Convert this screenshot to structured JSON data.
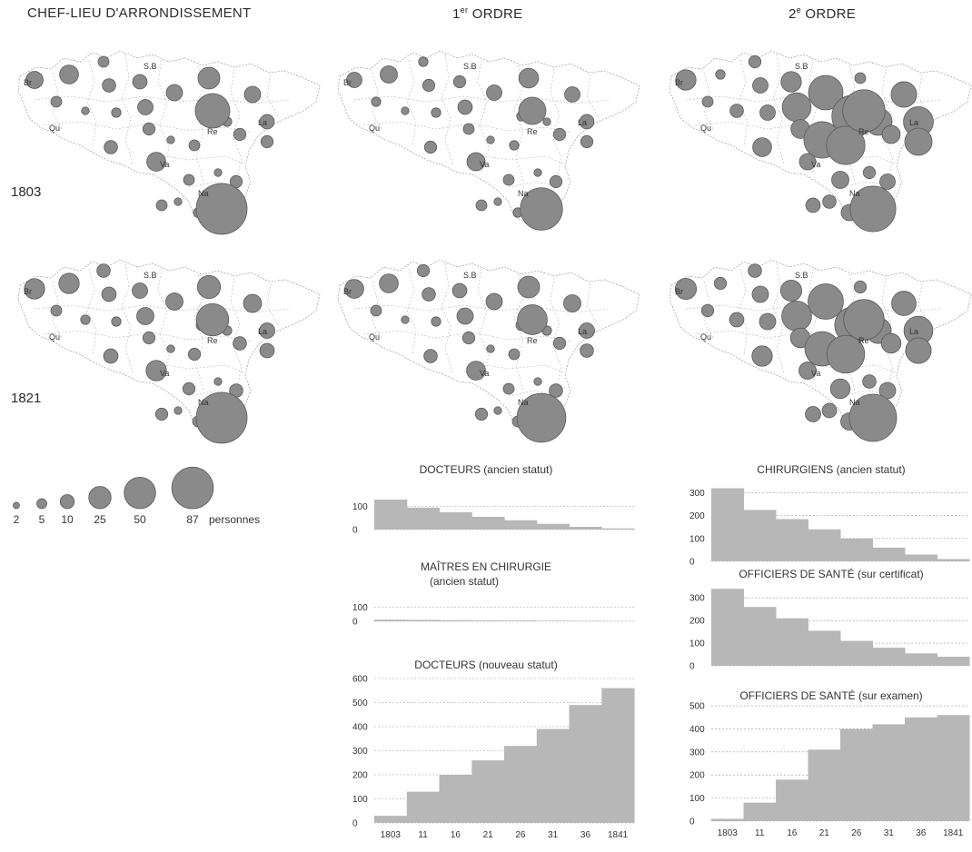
{
  "columns": [
    "CHEF-LIEU D'ARRONDISSEMENT",
    "1",
    "2"
  ],
  "column_ordre": {
    "first": {
      "num": "1",
      "sup": "er",
      "word": " ORDRE"
    },
    "second": {
      "num": "2",
      "sup": "e",
      "word": " ORDRE"
    }
  },
  "rows": [
    "1803",
    "1821"
  ],
  "city_labels": [
    "Br",
    "Qu",
    "S.B",
    "Re",
    "La",
    "Va",
    "Na"
  ],
  "maps": [
    {
      "year": "1803",
      "column": "CHEF-LIEU D'ARRONDISSEMENT",
      "sizes": [
        10,
        12,
        4,
        6,
        7,
        8,
        16,
        4,
        2,
        3,
        5,
        9,
        3,
        2,
        4,
        3,
        5,
        7,
        9,
        5,
        40,
        6,
        12,
        4,
        2,
        2,
        3,
        5,
        4,
        87
      ]
    },
    {
      "year": "1803",
      "column": "1er ORDRE",
      "sizes": [
        8,
        10,
        3,
        5,
        5,
        7,
        13,
        3,
        2,
        3,
        4,
        8,
        3,
        2,
        3,
        2,
        5,
        7,
        8,
        5,
        25,
        5,
        11,
        4,
        2,
        2,
        3,
        5,
        4,
        60
      ]
    },
    {
      "year": "1803",
      "column": "2e ORDRE",
      "sizes": [
        14,
        3,
        5,
        8,
        14,
        28,
        4,
        4,
        6,
        8,
        12,
        40,
        60,
        45,
        50,
        25,
        11,
        30,
        22,
        25,
        60,
        12,
        9,
        10,
        5,
        6,
        9,
        8,
        7,
        70
      ]
    },
    {
      "year": "1821",
      "column": "CHEF-LIEU D'ARRONDISSEMENT",
      "sizes": [
        14,
        14,
        6,
        7,
        8,
        10,
        18,
        4,
        3,
        3,
        5,
        10,
        4,
        2,
        5,
        3,
        6,
        8,
        11,
        7,
        35,
        7,
        14,
        5,
        2,
        2,
        4,
        6,
        5,
        87
      ]
    },
    {
      "year": "1821",
      "column": "1er ORDRE",
      "sizes": [
        12,
        12,
        5,
        6,
        7,
        9,
        16,
        4,
        2,
        3,
        5,
        9,
        4,
        2,
        4,
        3,
        5,
        8,
        10,
        6,
        30,
        6,
        12,
        4,
        2,
        2,
        4,
        6,
        5,
        80
      ]
    },
    {
      "year": "1821",
      "column": "2e ORDRE",
      "sizes": [
        15,
        5,
        6,
        9,
        15,
        30,
        5,
        5,
        7,
        9,
        13,
        42,
        45,
        40,
        48,
        22,
        13,
        28,
        20,
        22,
        55,
        14,
        10,
        13,
        6,
        7,
        10,
        9,
        8,
        75
      ]
    }
  ],
  "legend": {
    "sizes": [
      2,
      5,
      10,
      25,
      50,
      87
    ],
    "labels": [
      "2",
      "5",
      "10",
      "25",
      "50",
      "87"
    ],
    "unit": "personnes"
  },
  "chart_data": [
    {
      "type": "bar",
      "title": "DOCTEURS (ancien statut)",
      "x": [
        "1803",
        "11",
        "16",
        "21",
        "26",
        "31",
        "36",
        "1841"
      ],
      "values": [
        130,
        95,
        75,
        55,
        40,
        25,
        12,
        5
      ],
      "ylim": [
        0,
        130
      ],
      "yticks": [
        "0",
        "100"
      ],
      "grid": true
    },
    {
      "type": "bar",
      "title": "MAÎTRES EN CHIRURGIE",
      "subtitle": "(ancien statut)",
      "x": [
        "1803",
        "11",
        "16",
        "21",
        "26",
        "31",
        "36",
        "1841"
      ],
      "values": [
        12,
        10,
        8,
        6,
        5,
        4,
        3,
        2
      ],
      "ylim": [
        0,
        130
      ],
      "yticks": [
        "0",
        "100"
      ],
      "grid": true
    },
    {
      "type": "bar",
      "title": "DOCTEURS (nouveau statut)",
      "x": [
        "1803",
        "11",
        "16",
        "21",
        "26",
        "31",
        "36",
        "1841"
      ],
      "values": [
        30,
        130,
        200,
        260,
        320,
        390,
        490,
        560
      ],
      "ylim": [
        0,
        600
      ],
      "yticks": [
        "0",
        "100",
        "200",
        "300",
        "400",
        "500",
        "600"
      ],
      "grid": true
    },
    {
      "type": "bar",
      "title": "CHIRURGIENS (ancien statut)",
      "x": [
        "1803",
        "11",
        "16",
        "21",
        "26",
        "31",
        "36",
        "1841"
      ],
      "values": [
        320,
        225,
        185,
        140,
        100,
        60,
        30,
        10
      ],
      "ylim": [
        0,
        330
      ],
      "yticks": [
        "0",
        "100",
        "200",
        "300"
      ],
      "grid": true
    },
    {
      "type": "bar",
      "title": "OFFICIERS DE SANTÉ (sur certificat)",
      "x": [
        "1803",
        "11",
        "16",
        "21",
        "26",
        "31",
        "36",
        "1841"
      ],
      "values": [
        340,
        260,
        210,
        155,
        110,
        80,
        55,
        40
      ],
      "ylim": [
        0,
        345
      ],
      "yticks": [
        "0",
        "100",
        "200",
        "300"
      ],
      "grid": true
    },
    {
      "type": "bar",
      "title": "OFFICIERS DE SANTÉ (sur examen)",
      "x": [
        "1803",
        "11",
        "16",
        "21",
        "26",
        "31",
        "36",
        "1841"
      ],
      "values": [
        10,
        80,
        180,
        310,
        400,
        420,
        450,
        460
      ],
      "ylim": [
        0,
        520
      ],
      "yticks": [
        "0",
        "100",
        "200",
        "300",
        "400",
        "500"
      ],
      "grid": true
    }
  ]
}
